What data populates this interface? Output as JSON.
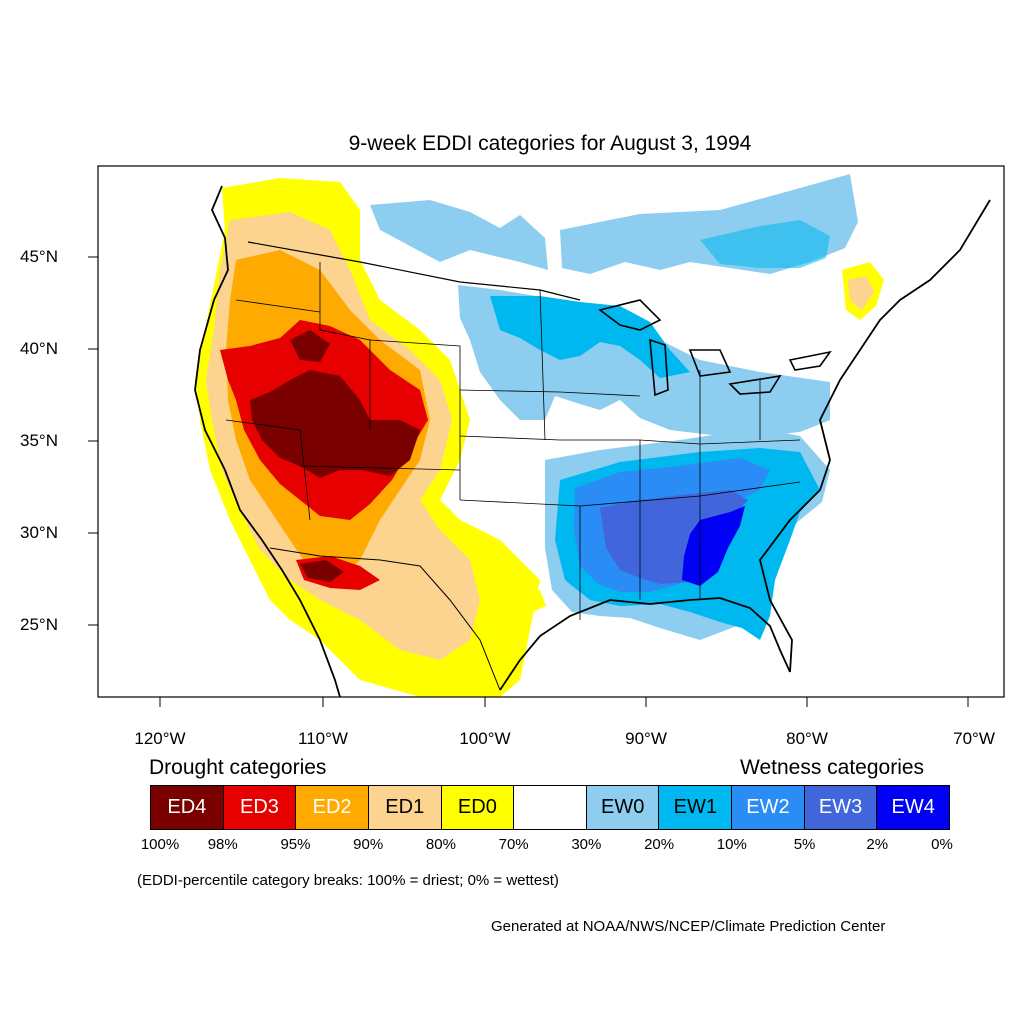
{
  "title": "9-week EDDI categories for August 3, 1994",
  "axes": {
    "lat_labels": [
      "45°N",
      "40°N",
      "35°N",
      "30°N",
      "25°N"
    ],
    "lon_labels": [
      "120°W",
      "110°W",
      "100°W",
      "90°W",
      "80°W",
      "70°W"
    ]
  },
  "legend": {
    "drought_heading": "Drought categories",
    "wetness_heading": "Wetness categories",
    "categories": [
      {
        "label": "ED4",
        "color": "#7a0000",
        "text_color": "#ffffff"
      },
      {
        "label": "ED3",
        "color": "#e60000",
        "text_color": "#ffffff"
      },
      {
        "label": "ED2",
        "color": "#ffaa00",
        "text_color": "#ffffff"
      },
      {
        "label": "ED1",
        "color": "#fcd38f",
        "text_color": "#000000"
      },
      {
        "label": "ED0",
        "color": "#ffff00",
        "text_color": "#000000"
      },
      {
        "label": "",
        "color": "#ffffff",
        "text_color": "#000000"
      },
      {
        "label": "EW0",
        "color": "#8ccdf0",
        "text_color": "#000000"
      },
      {
        "label": "EW1",
        "color": "#00b8f0",
        "text_color": "#000000"
      },
      {
        "label": "EW2",
        "color": "#2a8cf5",
        "text_color": "#ffffff"
      },
      {
        "label": "EW3",
        "color": "#4166dc",
        "text_color": "#ffffff"
      },
      {
        "label": "EW4",
        "color": "#0000f5",
        "text_color": "#ffffff"
      }
    ],
    "breaks": [
      "100%",
      "98%",
      "95%",
      "90%",
      "80%",
      "70%",
      "30%",
      "20%",
      "10%",
      "5%",
      "2%",
      "0%"
    ]
  },
  "breaks_note": "(EDDI-percentile category breaks: 100% = driest; 0% = wettest)",
  "credit": "Generated at NOAA/NWS/NCEP/Climate Prediction Center"
}
